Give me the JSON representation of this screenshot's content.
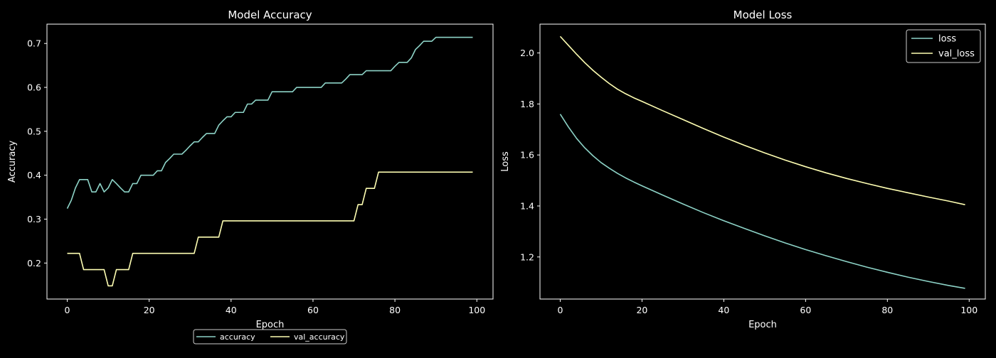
{
  "chart_data": [
    {
      "type": "line",
      "title": "Model Accuracy",
      "xlabel": "Epoch",
      "ylabel": "Accuracy",
      "xlim": [
        -4.95,
        103.95
      ],
      "ylim": [
        0.118,
        0.744
      ],
      "xticks": [
        0,
        20,
        40,
        60,
        80,
        100
      ],
      "yticks": [
        0.2,
        0.3,
        0.4,
        0.5,
        0.6,
        0.7
      ],
      "ytick_decimals": 1,
      "legend": "bottom-center-outside",
      "series": [
        {
          "name": "accuracy",
          "color": "#8dd3c7",
          "x": [
            0,
            1,
            2,
            3,
            4,
            5,
            6,
            7,
            8,
            9,
            10,
            11,
            12,
            13,
            14,
            15,
            16,
            17,
            18,
            19,
            20,
            21,
            22,
            23,
            24,
            25,
            26,
            27,
            28,
            29,
            30,
            31,
            32,
            33,
            34,
            35,
            36,
            37,
            38,
            39,
            40,
            41,
            42,
            43,
            44,
            45,
            46,
            47,
            48,
            49,
            50,
            51,
            52,
            53,
            54,
            55,
            56,
            57,
            58,
            59,
            60,
            61,
            62,
            63,
            64,
            65,
            66,
            67,
            68,
            69,
            70,
            71,
            72,
            73,
            74,
            75,
            76,
            77,
            78,
            79,
            80,
            81,
            82,
            83,
            84,
            85,
            86,
            87,
            88,
            89,
            90,
            91,
            92,
            93,
            94,
            95,
            96,
            97,
            98,
            99
          ],
          "y": [
            0.324,
            0.343,
            0.371,
            0.39,
            0.39,
            0.39,
            0.362,
            0.362,
            0.381,
            0.362,
            0.371,
            0.39,
            0.381,
            0.371,
            0.362,
            0.362,
            0.381,
            0.381,
            0.4,
            0.4,
            0.4,
            0.4,
            0.41,
            0.41,
            0.429,
            0.438,
            0.448,
            0.448,
            0.448,
            0.457,
            0.467,
            0.476,
            0.476,
            0.486,
            0.495,
            0.495,
            0.495,
            0.514,
            0.524,
            0.533,
            0.533,
            0.543,
            0.543,
            0.543,
            0.562,
            0.562,
            0.571,
            0.571,
            0.571,
            0.571,
            0.59,
            0.59,
            0.59,
            0.59,
            0.59,
            0.59,
            0.6,
            0.6,
            0.6,
            0.6,
            0.6,
            0.6,
            0.6,
            0.61,
            0.61,
            0.61,
            0.61,
            0.61,
            0.619,
            0.629,
            0.629,
            0.629,
            0.629,
            0.638,
            0.638,
            0.638,
            0.638,
            0.638,
            0.638,
            0.638,
            0.648,
            0.657,
            0.657,
            0.657,
            0.667,
            0.686,
            0.695,
            0.705,
            0.705,
            0.705,
            0.714,
            0.714,
            0.714,
            0.714,
            0.714,
            0.714,
            0.714,
            0.714,
            0.714,
            0.714
          ]
        },
        {
          "name": "val_accuracy",
          "color": "#ffffb3",
          "x": [
            0,
            1,
            2,
            3,
            4,
            5,
            6,
            7,
            8,
            9,
            10,
            11,
            12,
            13,
            14,
            15,
            16,
            17,
            18,
            19,
            20,
            21,
            22,
            23,
            24,
            25,
            26,
            27,
            28,
            29,
            30,
            31,
            32,
            33,
            34,
            35,
            36,
            37,
            38,
            39,
            40,
            41,
            42,
            43,
            44,
            45,
            46,
            47,
            48,
            49,
            50,
            51,
            52,
            53,
            54,
            55,
            56,
            57,
            58,
            59,
            60,
            61,
            62,
            63,
            64,
            65,
            66,
            67,
            68,
            69,
            70,
            71,
            72,
            73,
            74,
            75,
            76,
            77,
            78,
            79,
            80,
            81,
            82,
            83,
            84,
            85,
            86,
            87,
            88,
            89,
            90,
            91,
            92,
            93,
            94,
            95,
            96,
            97,
            98,
            99
          ],
          "y": [
            0.222,
            0.222,
            0.222,
            0.222,
            0.185,
            0.185,
            0.185,
            0.185,
            0.185,
            0.185,
            0.148,
            0.148,
            0.185,
            0.185,
            0.185,
            0.185,
            0.222,
            0.222,
            0.222,
            0.222,
            0.222,
            0.222,
            0.222,
            0.222,
            0.222,
            0.222,
            0.222,
            0.222,
            0.222,
            0.222,
            0.222,
            0.222,
            0.259,
            0.259,
            0.259,
            0.259,
            0.259,
            0.259,
            0.296,
            0.296,
            0.296,
            0.296,
            0.296,
            0.296,
            0.296,
            0.296,
            0.296,
            0.296,
            0.296,
            0.296,
            0.296,
            0.296,
            0.296,
            0.296,
            0.296,
            0.296,
            0.296,
            0.296,
            0.296,
            0.296,
            0.296,
            0.296,
            0.296,
            0.296,
            0.296,
            0.296,
            0.296,
            0.296,
            0.296,
            0.296,
            0.296,
            0.333,
            0.333,
            0.37,
            0.37,
            0.37,
            0.407,
            0.407,
            0.407,
            0.407,
            0.407,
            0.407,
            0.407,
            0.407,
            0.407,
            0.407,
            0.407,
            0.407,
            0.407,
            0.407,
            0.407,
            0.407,
            0.407,
            0.407,
            0.407,
            0.407,
            0.407,
            0.407,
            0.407,
            0.407
          ]
        }
      ]
    },
    {
      "type": "line",
      "title": "Model Loss",
      "xlabel": "Epoch",
      "ylabel": "Loss",
      "xlim": [
        -4.95,
        103.95
      ],
      "ylim": [
        1.035,
        2.113
      ],
      "xticks": [
        0,
        20,
        40,
        60,
        80,
        100
      ],
      "yticks": [
        1.2,
        1.4,
        1.6,
        1.8,
        2.0
      ],
      "ytick_decimals": 1,
      "legend": "top-right",
      "series": [
        {
          "name": "loss",
          "color": "#8dd3c7",
          "x": [
            0,
            2,
            4,
            6,
            8,
            10,
            12,
            14,
            16,
            18,
            20,
            25,
            30,
            35,
            40,
            45,
            50,
            55,
            60,
            65,
            70,
            75,
            80,
            85,
            90,
            95,
            99
          ],
          "y": [
            1.76,
            1.71,
            1.665,
            1.628,
            1.597,
            1.57,
            1.548,
            1.528,
            1.51,
            1.494,
            1.479,
            1.443,
            1.408,
            1.374,
            1.342,
            1.312,
            1.283,
            1.255,
            1.229,
            1.205,
            1.182,
            1.16,
            1.14,
            1.121,
            1.104,
            1.088,
            1.077
          ]
        },
        {
          "name": "val_loss",
          "color": "#ffffb3",
          "x": [
            0,
            2,
            4,
            6,
            8,
            10,
            12,
            14,
            16,
            18,
            20,
            25,
            30,
            35,
            40,
            45,
            50,
            55,
            60,
            65,
            70,
            75,
            80,
            85,
            90,
            95,
            99
          ],
          "y": [
            2.065,
            2.03,
            1.995,
            1.962,
            1.932,
            1.905,
            1.88,
            1.858,
            1.84,
            1.824,
            1.81,
            1.774,
            1.739,
            1.704,
            1.67,
            1.638,
            1.608,
            1.58,
            1.554,
            1.53,
            1.508,
            1.488,
            1.469,
            1.452,
            1.435,
            1.419,
            1.405
          ]
        }
      ]
    }
  ]
}
